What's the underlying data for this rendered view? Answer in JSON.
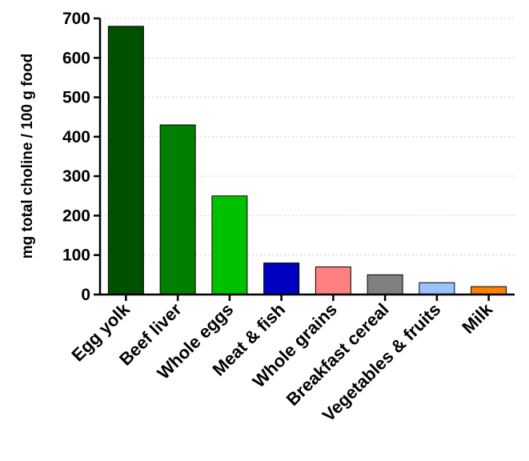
{
  "chart_data": {
    "type": "bar",
    "title": "",
    "xlabel": "",
    "ylabel": "mg total choline / 100 g food",
    "ylim": [
      0,
      700
    ],
    "yticks": [
      0,
      100,
      200,
      300,
      400,
      500,
      600,
      700
    ],
    "grid": "horizontal dotted",
    "legend": "none",
    "categories": [
      "Egg yolk",
      "Beef liver",
      "Whole eggs",
      "Meat & fish",
      "Whole grains",
      "Breakfast cereal",
      "Vegetables & fruits",
      "Milk"
    ],
    "values": [
      680,
      430,
      250,
      80,
      70,
      50,
      30,
      20
    ],
    "colors": [
      "#005000",
      "#008000",
      "#00c000",
      "#0000c0",
      "#ff8080",
      "#808080",
      "#99c4ff",
      "#ff8000"
    ]
  }
}
